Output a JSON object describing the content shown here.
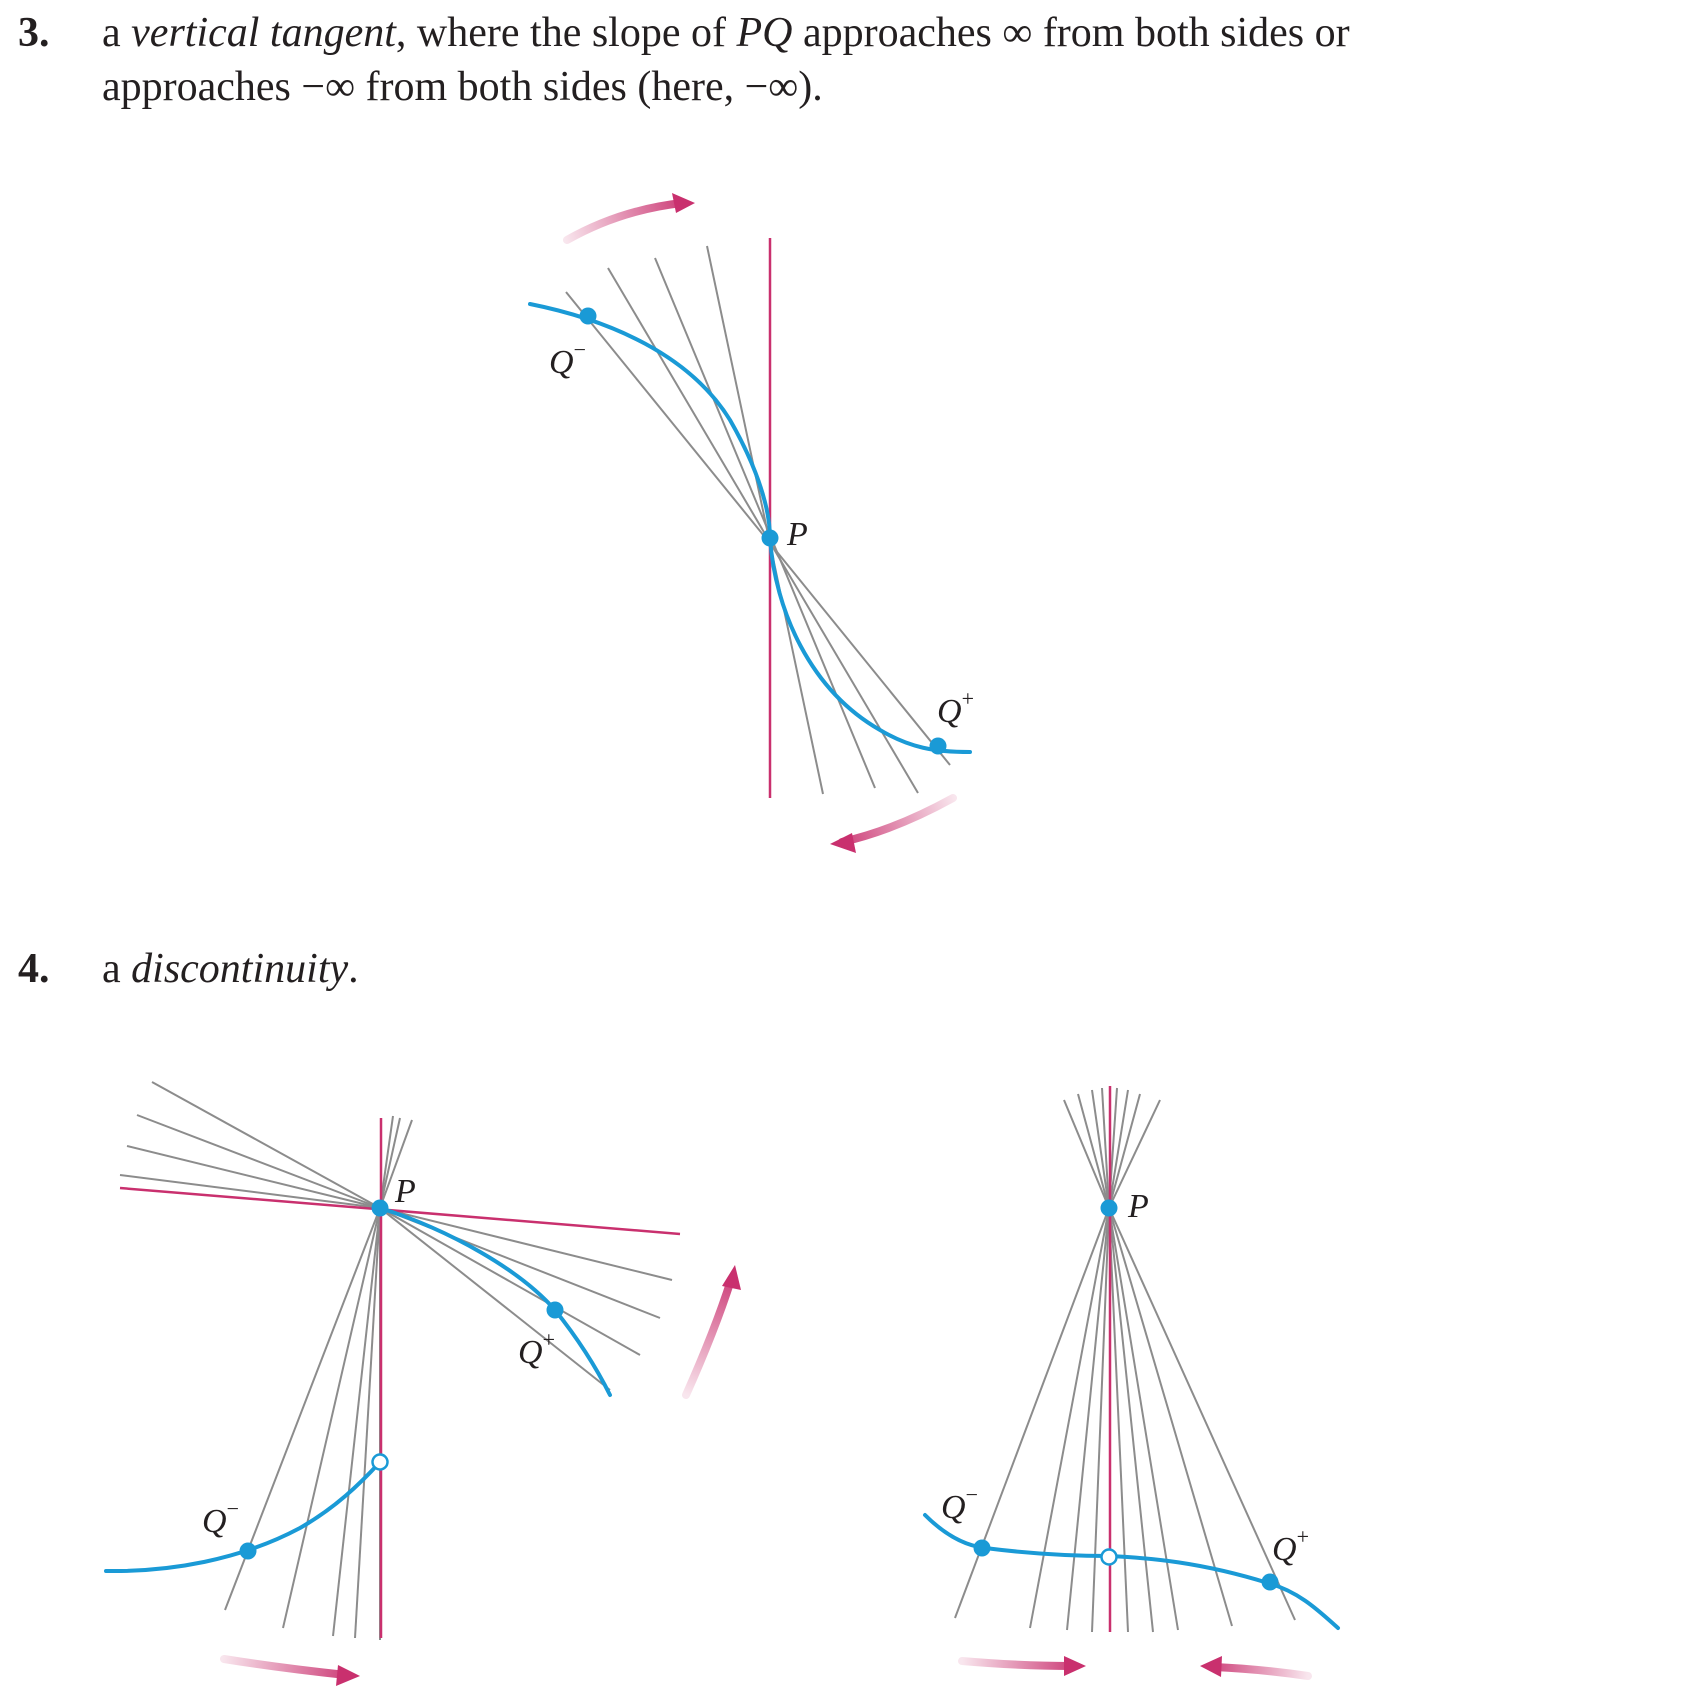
{
  "item3": {
    "number": "3.",
    "line1": {
      "pre": "a ",
      "emph": "vertical tangent",
      "post_a": ", where the slope of ",
      "pq": "PQ",
      "post_b": " approaches ∞ from both sides or"
    },
    "line2": "approaches −∞ from both sides (here, −∞)."
  },
  "item4": {
    "number": "4.",
    "pre": "a ",
    "emph": "discontinuity",
    "post": "."
  },
  "labels": {
    "P": "P",
    "Q": "Q",
    "minus": "−",
    "plus": "+"
  },
  "colors": {
    "curve": "#1a9ad6",
    "tangent": "#c9306e",
    "secant": "#8c8c8c",
    "arrow": "#c9306e"
  }
}
